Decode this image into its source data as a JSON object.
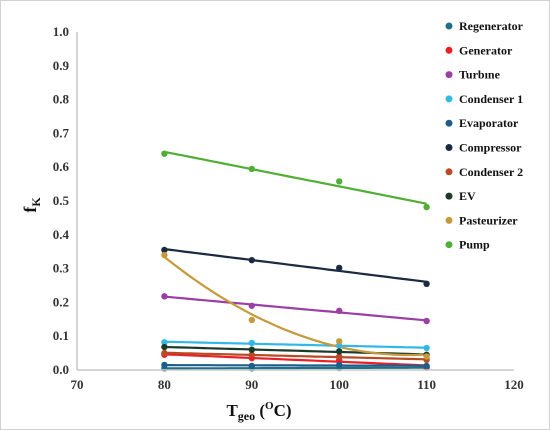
{
  "chart_data": {
    "type": "scatter",
    "title": "",
    "xlim": [
      70,
      120
    ],
    "ylim": [
      0,
      1.0
    ],
    "x_ticks": [
      "70",
      "80",
      "90",
      "100",
      "110",
      "120"
    ],
    "y_ticks": [
      "0.0",
      "0.1",
      "0.2",
      "0.3",
      "0.4",
      "0.5",
      "0.6",
      "0.7",
      "0.8",
      "0.9",
      "1.0"
    ],
    "xlabel": {
      "main": "T",
      "sub": "geo",
      "open": " (",
      "sup": "O",
      "close": "C)"
    },
    "ylabel": {
      "main": "f",
      "sub": "K"
    },
    "grid": false,
    "legend_position": "right",
    "series": [
      {
        "name": "Regenerator",
        "color": "#1f6f86",
        "trend": "linear",
        "x": [
          80,
          90,
          100,
          110
        ],
        "y": [
          0.005,
          0.005,
          0.006,
          0.007
        ]
      },
      {
        "name": "Generator",
        "color": "#e8202a",
        "trend": "linear",
        "x": [
          80,
          90,
          100,
          110
        ],
        "y": [
          0.045,
          0.035,
          0.03,
          0.01
        ]
      },
      {
        "name": "Turbıne",
        "color": "#9c3fa5",
        "trend": "linear",
        "x": [
          80,
          90,
          100,
          110
        ],
        "y": [
          0.218,
          0.19,
          0.175,
          0.145
        ]
      },
      {
        "name": "Condenser 1",
        "color": "#33b8e6",
        "trend": "linear",
        "x": [
          80,
          90,
          100,
          110
        ],
        "y": [
          0.082,
          0.08,
          0.072,
          0.065
        ]
      },
      {
        "name": "Evaporator",
        "color": "#1c5d8c",
        "trend": "linear",
        "x": [
          80,
          90,
          100,
          110
        ],
        "y": [
          0.015,
          0.012,
          0.015,
          0.012
        ]
      },
      {
        "name": "Compressor",
        "color": "#1a2a40",
        "trend": "linear",
        "x": [
          80,
          90,
          100,
          110
        ],
        "y": [
          0.355,
          0.325,
          0.302,
          0.255
        ]
      },
      {
        "name": "Condenser 2",
        "color": "#b84a24",
        "trend": "linear",
        "x": [
          80,
          90,
          100,
          110
        ],
        "y": [
          0.05,
          0.045,
          0.04,
          0.03
        ]
      },
      {
        "name": "EV",
        "color": "#1a3a2a",
        "trend": "linear",
        "x": [
          80,
          90,
          100,
          110
        ],
        "y": [
          0.068,
          0.06,
          0.055,
          0.045
        ]
      },
      {
        "name": "Pasteurizer",
        "color": "#c59a3b",
        "trend": "curve",
        "x": [
          80,
          90,
          100,
          110
        ],
        "y": [
          0.34,
          0.148,
          0.085,
          0.04
        ]
      },
      {
        "name": "Pump",
        "color": "#4fae33",
        "trend": "linear",
        "x": [
          80,
          90,
          100,
          110
        ],
        "y": [
          0.64,
          0.595,
          0.558,
          0.482
        ]
      }
    ]
  }
}
